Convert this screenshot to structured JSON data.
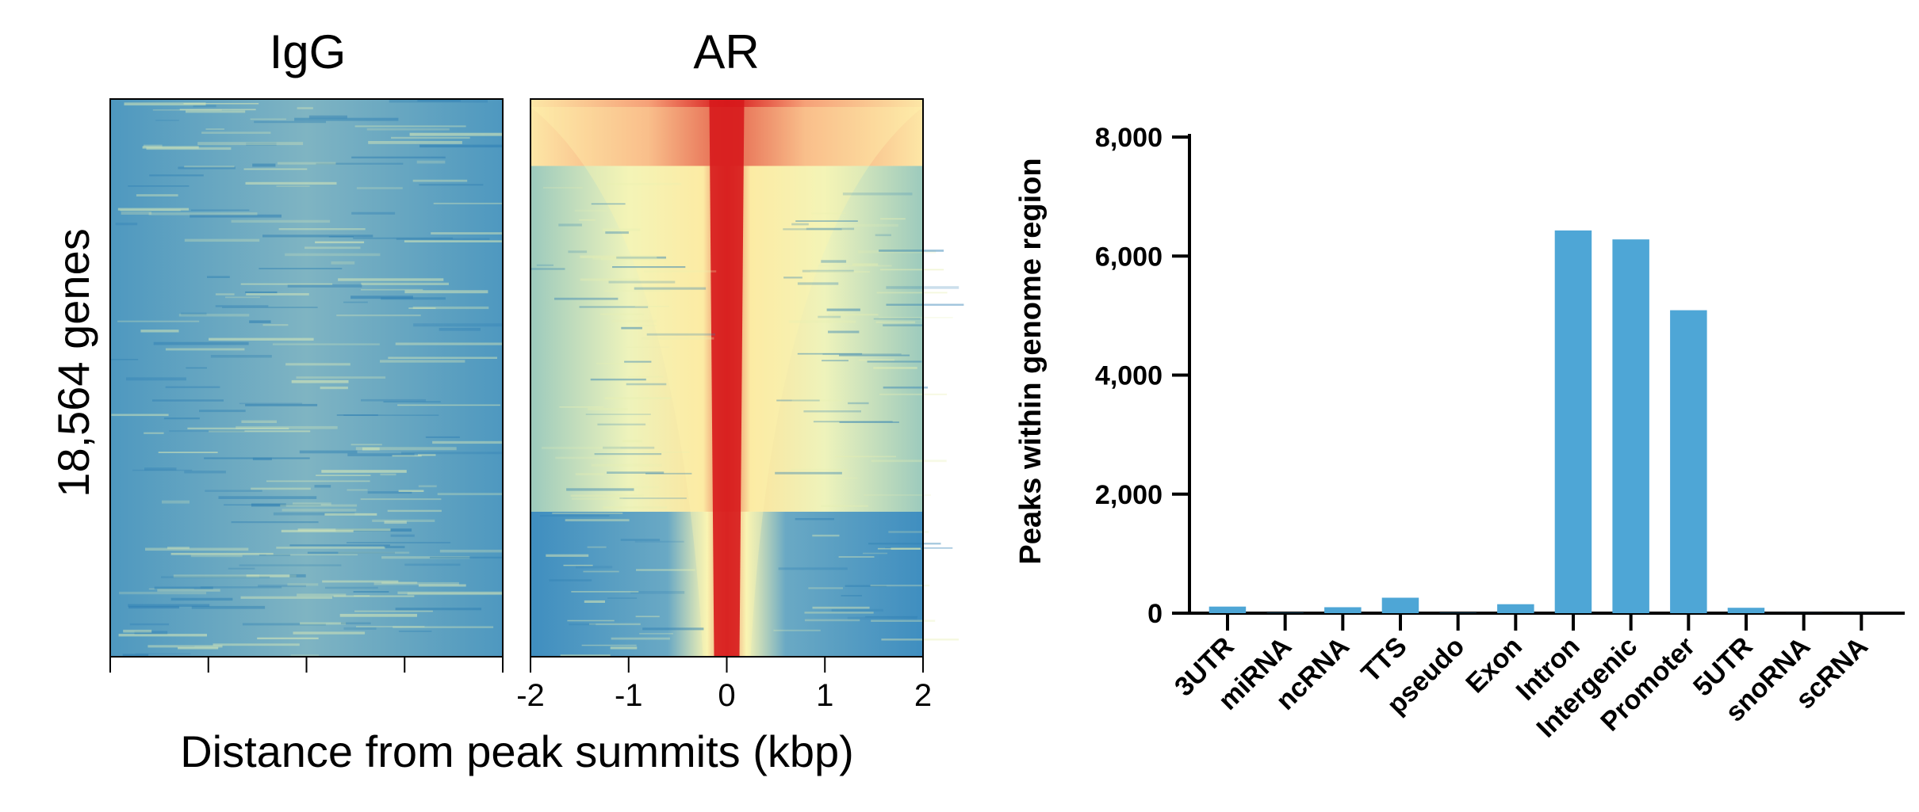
{
  "colors": {
    "heatmap_low": "#2b83ba",
    "heatmap_mid": "#ffffbf",
    "heatmap_high": "#d7191c",
    "bar_fill": "#4ea6d6",
    "axis": "#000000"
  },
  "chart_data": [
    {
      "type": "heatmap",
      "panels": [
        {
          "name": "IgG",
          "pattern": "uniform-low"
        },
        {
          "name": "AR",
          "pattern": "central-peak-enrichment"
        }
      ],
      "ylabel": "18,564 genes",
      "xlabel": "Distance from peak summits (kbp)",
      "x_ticks": [
        "-2",
        "-1",
        "0",
        "1",
        "2"
      ],
      "xlim": [
        -2,
        2
      ],
      "row_count_label": "18,564 genes"
    },
    {
      "type": "bar",
      "categories": [
        "3UTR",
        "miRNA",
        "ncRNA",
        "TTS",
        "pseudo",
        "Exon",
        "Intron",
        "Intergenic",
        "Promoter",
        "5UTR",
        "snoRNA",
        "scRNA"
      ],
      "values": [
        110,
        5,
        100,
        260,
        5,
        150,
        6430,
        6280,
        5090,
        90,
        3,
        3
      ],
      "ylabel": "Peaks within genome region",
      "xlabel": "",
      "ylim": [
        0,
        8000
      ],
      "y_ticks": [
        0,
        2000,
        4000,
        6000,
        8000
      ],
      "y_tick_labels": [
        "0",
        "2,000",
        "4,000",
        "6,000",
        "8,000"
      ]
    }
  ]
}
